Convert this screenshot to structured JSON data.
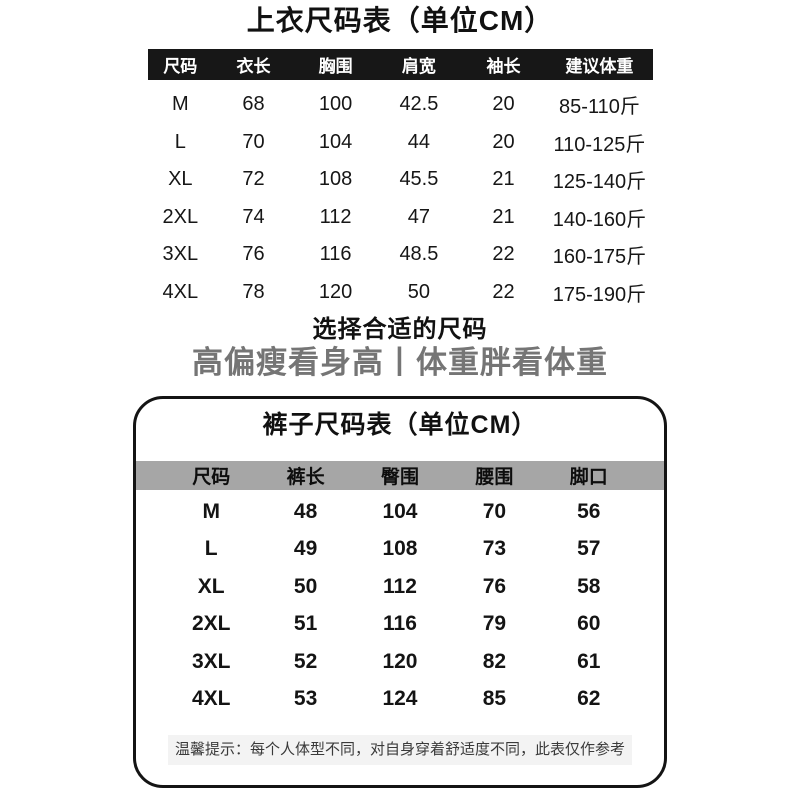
{
  "shirt": {
    "title": "上衣尺码表（单位CM）",
    "headers": [
      "尺码",
      "衣长",
      "胸围",
      "肩宽",
      "袖长",
      "建议体重"
    ],
    "rows": [
      [
        "M",
        "68",
        "100",
        "42.5",
        "20",
        "85-110斤"
      ],
      [
        "L",
        "70",
        "104",
        "44",
        "20",
        "110-125斤"
      ],
      [
        "XL",
        "72",
        "108",
        "45.5",
        "21",
        "125-140斤"
      ],
      [
        "2XL",
        "74",
        "112",
        "47",
        "21",
        "140-160斤"
      ],
      [
        "3XL",
        "76",
        "116",
        "48.5",
        "22",
        "160-175斤"
      ],
      [
        "4XL",
        "78",
        "120",
        "50",
        "22",
        "175-190斤"
      ]
    ]
  },
  "tip": {
    "line1": "选择合适的尺码",
    "line2": "高偏瘦看身高丨体重胖看体重"
  },
  "pants": {
    "title": "裤子尺码表（单位CM）",
    "headers": [
      "尺码",
      "裤长",
      "臀围",
      "腰围",
      "脚口"
    ],
    "rows": [
      [
        "M",
        "48",
        "104",
        "70",
        "56"
      ],
      [
        "L",
        "49",
        "108",
        "73",
        "57"
      ],
      [
        "XL",
        "50",
        "112",
        "76",
        "58"
      ],
      [
        "2XL",
        "51",
        "116",
        "79",
        "60"
      ],
      [
        "3XL",
        "52",
        "120",
        "82",
        "61"
      ],
      [
        "4XL",
        "53",
        "124",
        "85",
        "62"
      ]
    ],
    "note": "温馨提示：每个人体型不同，对自身穿着舒适度不同，此表仅作参考"
  },
  "colors": {
    "shirt_header_bg": "#171717",
    "shirt_header_text": "#ffffff",
    "pants_header_bg": "#a6a6a6",
    "tip_gray_text": "#757575",
    "note_bg": "#f3f3f3",
    "container_border": "#141414"
  }
}
